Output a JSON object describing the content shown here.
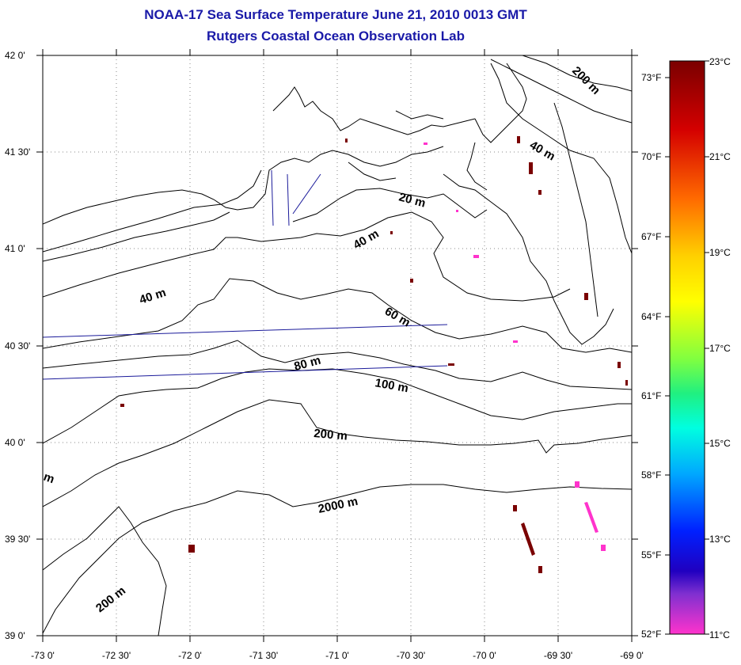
{
  "title": "NOAA-17 Sea Surface Temperature June 21, 2010 0013 GMT",
  "subtitle": "Rutgers Coastal Ocean Observation Lab",
  "axes": {
    "lat_ticks": [
      "42 0'",
      "41 30'",
      "41 0'",
      "40 30'",
      "40 0'",
      "39 30'",
      "39 0'"
    ],
    "lon_ticks": [
      "-73 0'",
      "-72 30'",
      "-72 0'",
      "-71 30'",
      "-71 0'",
      "-70 30'",
      "-70 0'",
      "-69 30'",
      "-69 0'"
    ],
    "grid": true
  },
  "contour_labels": {
    "c200_ne": "200 m",
    "c40_ne": "40 m",
    "c20": "20 m",
    "c40_mid": "40 m",
    "c40_west": "40 m",
    "c60": "60 m",
    "c80": "80 m",
    "c100": "100 m",
    "c200_mid": "200 m",
    "c2000": "2000 m",
    "c200_sw": "200 m",
    "cm_edge": "m"
  },
  "colorbar": {
    "celsius": [
      "23°C",
      "21°C",
      "19°C",
      "17°C",
      "15°C",
      "13°C",
      "11°C"
    ],
    "fahrenheit": [
      "73°F",
      "70°F",
      "67°F",
      "64°F",
      "61°F",
      "58°F",
      "55°F",
      "52°F"
    ],
    "range_c": [
      11,
      23
    ]
  },
  "colors": {
    "title": "#1a1aa8",
    "warm_pixels": "#7a0000",
    "cool_pixels": "#ff33cc",
    "tracks": "#1a1a9a"
  }
}
